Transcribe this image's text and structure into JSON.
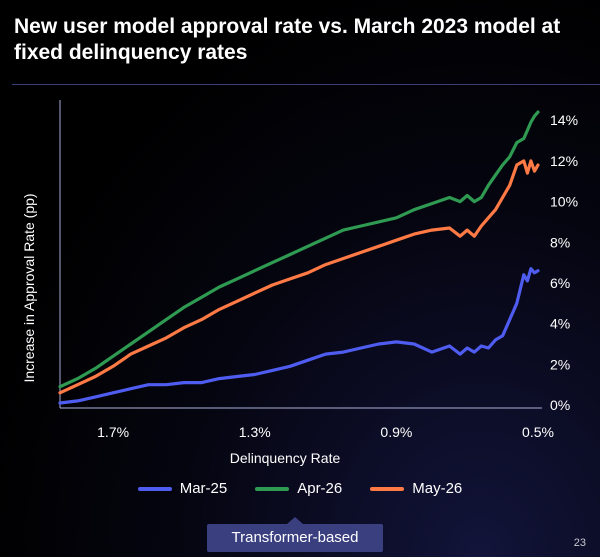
{
  "header": {
    "title": "New user model approval rate vs. March 2023 model at fixed delinquency rates"
  },
  "footer": {
    "badge_label": "Transformer-based",
    "page_number": "23"
  },
  "chart_data": {
    "type": "line",
    "title": "New user model approval rate vs. March 2023 model at fixed delinquency rates",
    "xlabel": "Delinquency Rate",
    "ylabel": "Increase in Approval Rate (pp)",
    "x_ticks": [
      "1.7%",
      "1.3%",
      "0.9%",
      "0.5%"
    ],
    "y_ticks": [
      "0%",
      "2%",
      "4%",
      "6%",
      "8%",
      "10%",
      "12%",
      "14%"
    ],
    "xlim": [
      1.85,
      0.5
    ],
    "ylim": [
      0,
      14.6
    ],
    "x_reversed": true,
    "grid": false,
    "legend_position": "bottom",
    "colors": {
      "Mar-25": "#4f5cf0",
      "Apr-26": "#2f9a52",
      "May-26": "#ff7a45"
    },
    "x": [
      1.85,
      1.8,
      1.75,
      1.7,
      1.65,
      1.6,
      1.55,
      1.5,
      1.45,
      1.4,
      1.35,
      1.3,
      1.25,
      1.2,
      1.15,
      1.1,
      1.05,
      1.0,
      0.95,
      0.9,
      0.85,
      0.8,
      0.75,
      0.72,
      0.7,
      0.68,
      0.66,
      0.64,
      0.62,
      0.6,
      0.58,
      0.56,
      0.54,
      0.53,
      0.52,
      0.51,
      0.5
    ],
    "series": [
      {
        "name": "Mar-25",
        "values": [
          0.1,
          0.2,
          0.4,
          0.6,
          0.8,
          1.0,
          1.0,
          1.1,
          1.1,
          1.3,
          1.4,
          1.5,
          1.7,
          1.9,
          2.2,
          2.5,
          2.6,
          2.8,
          3.0,
          3.1,
          3.0,
          2.6,
          2.9,
          2.5,
          2.8,
          2.6,
          2.9,
          2.8,
          3.2,
          3.4,
          4.2,
          5.0,
          6.4,
          6.1,
          6.7,
          6.5,
          6.6
        ]
      },
      {
        "name": "Apr-26",
        "values": [
          0.9,
          1.3,
          1.8,
          2.4,
          3.0,
          3.6,
          4.2,
          4.8,
          5.3,
          5.8,
          6.2,
          6.6,
          7.0,
          7.4,
          7.8,
          8.2,
          8.6,
          8.8,
          9.0,
          9.2,
          9.6,
          9.9,
          10.2,
          10.0,
          10.3,
          10.0,
          10.2,
          10.8,
          11.3,
          11.8,
          12.2,
          12.9,
          13.1,
          13.5,
          13.9,
          14.2,
          14.4
        ]
      },
      {
        "name": "May-26",
        "values": [
          0.6,
          1.0,
          1.4,
          1.9,
          2.5,
          2.9,
          3.3,
          3.8,
          4.2,
          4.7,
          5.1,
          5.5,
          5.9,
          6.2,
          6.5,
          6.9,
          7.2,
          7.5,
          7.8,
          8.1,
          8.4,
          8.6,
          8.7,
          8.3,
          8.6,
          8.3,
          8.8,
          9.2,
          9.6,
          10.2,
          10.8,
          11.8,
          12.0,
          11.4,
          12.0,
          11.5,
          11.8
        ]
      }
    ]
  }
}
